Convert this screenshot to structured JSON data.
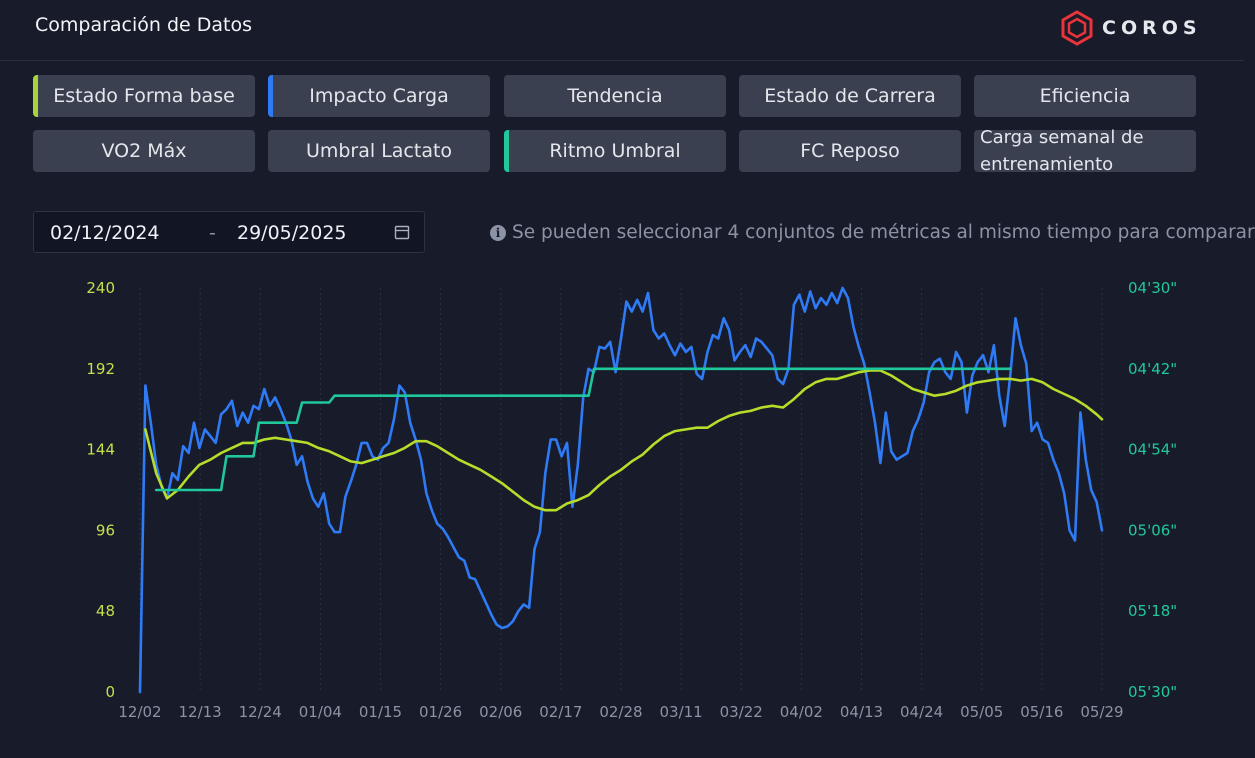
{
  "header": {
    "title": "Comparación de Datos",
    "brand": "COROS",
    "logo_icon": "coros-hexagon-logo"
  },
  "metrics": [
    {
      "label": "Estado Forma base",
      "accent": "#a8d43a"
    },
    {
      "label": "Impacto Carga",
      "accent": "#2f7bf5"
    },
    {
      "label": "Tendencia",
      "accent": null
    },
    {
      "label": "Estado de Carrera",
      "accent": null
    },
    {
      "label": "Eficiencia",
      "accent": null
    },
    {
      "label": "VO2 Máx",
      "accent": null
    },
    {
      "label": "Umbral Lactato",
      "accent": null
    },
    {
      "label": "Ritmo Umbral",
      "accent": "#21c89a"
    },
    {
      "label": "FC Reposo",
      "accent": null
    },
    {
      "label": "Carga semanal de entrenamiento",
      "accent": null
    }
  ],
  "date_range": {
    "start": "02/12/2024",
    "separator": "-",
    "end": "29/05/2025",
    "icon": "calendar-icon"
  },
  "hint": {
    "icon": "info-icon",
    "text": "Se pueden seleccionar 4 conjuntos de métricas al mismo tiempo para comparar"
  },
  "colors": {
    "background": "#171b2a",
    "button": "#3b4050",
    "left_axis": "#c4e04a",
    "right_axis": "#21c89a",
    "x_axis": "#8c93a4"
  },
  "chart_data": {
    "type": "line",
    "x_ticks": [
      "12/02",
      "12/13",
      "12/24",
      "01/04",
      "01/15",
      "01/26",
      "02/06",
      "02/17",
      "02/28",
      "03/11",
      "03/22",
      "04/02",
      "04/13",
      "04/24",
      "05/05",
      "05/16",
      "05/29"
    ],
    "left_axis": {
      "ticks": [
        "240",
        "192",
        "144",
        "96",
        "48",
        "0"
      ],
      "ylim": [
        0,
        240
      ]
    },
    "right_axis": {
      "ticks": [
        "04'30\"",
        "04'42\"",
        "04'54\"",
        "05'06\"",
        "05'18\"",
        "05'30\""
      ],
      "ylim_seconds": [
        270,
        330
      ],
      "inverted": true
    },
    "grid": "vertical dotted",
    "series": [
      {
        "name": "Impacto Carga",
        "axis": "left",
        "color": "#2f7bf5",
        "x_day": [
          0,
          1,
          2,
          3,
          4,
          5,
          6,
          7,
          8,
          9,
          10,
          11,
          12,
          13,
          14,
          15,
          16,
          17,
          18,
          19,
          20,
          21,
          22,
          23,
          24,
          25,
          26,
          27,
          28,
          29,
          30,
          31,
          32,
          33,
          34,
          35,
          36,
          37,
          38,
          39,
          40,
          41,
          42,
          43,
          44,
          45,
          46,
          47,
          48,
          49,
          50,
          51,
          52,
          53,
          54,
          55,
          56,
          57,
          58,
          59,
          60,
          61,
          62,
          63,
          64,
          65,
          66,
          67,
          68,
          69,
          70,
          71,
          72,
          73,
          74,
          75,
          76,
          77,
          78,
          79,
          80,
          81,
          82,
          83,
          84,
          85,
          86,
          87,
          88,
          89,
          90,
          91,
          92,
          93,
          94,
          95,
          96,
          97,
          98,
          99,
          100,
          101,
          102,
          103,
          104,
          105,
          106,
          107,
          108,
          109,
          110,
          111,
          112,
          113,
          114,
          115,
          116,
          117,
          118,
          119,
          120,
          121,
          122,
          123,
          124,
          125,
          126,
          127,
          128,
          129,
          130,
          131,
          132,
          133,
          134,
          135,
          136,
          137,
          138,
          139,
          140,
          141,
          142,
          143,
          144,
          145,
          146,
          147,
          148,
          149,
          150,
          151,
          152,
          153,
          154,
          155,
          156,
          157,
          158,
          159,
          160,
          161,
          162,
          163,
          164,
          165,
          166,
          167,
          168,
          169,
          170,
          171,
          172,
          173,
          174,
          175,
          176,
          177,
          178
        ],
        "values": [
          0,
          182,
          160,
          135,
          122,
          115,
          130,
          126,
          146,
          142,
          160,
          145,
          156,
          152,
          148,
          165,
          168,
          173,
          158,
          166,
          160,
          170,
          168,
          180,
          170,
          175,
          168,
          160,
          150,
          135,
          140,
          125,
          115,
          110,
          118,
          100,
          95,
          95,
          116,
          125,
          135,
          148,
          148,
          140,
          138,
          145,
          148,
          162,
          182,
          178,
          160,
          150,
          138,
          118,
          108,
          100,
          97,
          92,
          86,
          80,
          78,
          68,
          67,
          60,
          53,
          46,
          40,
          38,
          39,
          42,
          48,
          52,
          50,
          85,
          95,
          130,
          150,
          150,
          140,
          148,
          110,
          135,
          175,
          192,
          190,
          205,
          204,
          208,
          190,
          210,
          232,
          226,
          233,
          226,
          237,
          215,
          210,
          213,
          206,
          200,
          207,
          202,
          205,
          189,
          186,
          202,
          212,
          210,
          222,
          215,
          197,
          202,
          206,
          199,
          210,
          208,
          204,
          200,
          186,
          183,
          192,
          230,
          236,
          226,
          238,
          228,
          234,
          230,
          237,
          231,
          240,
          234,
          217,
          205,
          195,
          178,
          160,
          136,
          166,
          143,
          138,
          140,
          142,
          155,
          162,
          172,
          190,
          196,
          198,
          190,
          186,
          202,
          196,
          166,
          188,
          196,
          200,
          190,
          206,
          176,
          158,
          187,
          222,
          206,
          195,
          155,
          160,
          150,
          148,
          138,
          130,
          118,
          96,
          90,
          166,
          138,
          120,
          113,
          96
        ]
      },
      {
        "name": "Estado Forma base",
        "axis": "left",
        "color": "#b5dd2a",
        "x_day": [
          1,
          3,
          5,
          7,
          9,
          11,
          13,
          15,
          17,
          19,
          21,
          23,
          25,
          27,
          29,
          31,
          33,
          35,
          37,
          39,
          41,
          43,
          45,
          47,
          49,
          51,
          53,
          55,
          57,
          59,
          61,
          63,
          65,
          67,
          69,
          71,
          73,
          75,
          77,
          79,
          81,
          83,
          85,
          87,
          89,
          91,
          93,
          95,
          97,
          99,
          101,
          103,
          105,
          107,
          109,
          111,
          113,
          115,
          117,
          119,
          121,
          123,
          125,
          127,
          129,
          131,
          133,
          135,
          137,
          139,
          141,
          143,
          145,
          147,
          149,
          151,
          153,
          155,
          157,
          159,
          161,
          163,
          165,
          167,
          169,
          171,
          173,
          175,
          177,
          178
        ],
        "values": [
          156,
          130,
          115,
          120,
          128,
          135,
          138,
          142,
          145,
          148,
          148,
          150,
          151,
          150,
          149,
          148,
          145,
          143,
          140,
          137,
          136,
          138,
          140,
          142,
          145,
          149,
          149,
          146,
          142,
          138,
          135,
          132,
          128,
          124,
          119,
          114,
          110,
          108,
          108,
          112,
          114,
          117,
          123,
          128,
          132,
          137,
          141,
          147,
          152,
          155,
          156,
          157,
          157,
          161,
          164,
          166,
          167,
          169,
          170,
          169,
          174,
          180,
          184,
          186,
          186,
          188,
          190,
          191,
          191,
          188,
          184,
          180,
          178,
          176,
          177,
          179,
          182,
          184,
          185,
          186,
          186,
          185,
          186,
          184,
          180,
          177,
          174,
          170,
          165,
          162
        ],
        "note": "last points near 176 then 162"
      },
      {
        "name": "Ritmo Umbral",
        "axis": "right",
        "color": "#1fc79b",
        "step": true,
        "x_day": [
          3,
          15,
          16,
          21,
          22,
          29,
          30,
          35,
          36,
          83,
          84,
          161
        ],
        "values_seconds": [
          300,
          300,
          295,
          295,
          290,
          290,
          287,
          287,
          286,
          286,
          282,
          282
        ]
      }
    ]
  }
}
